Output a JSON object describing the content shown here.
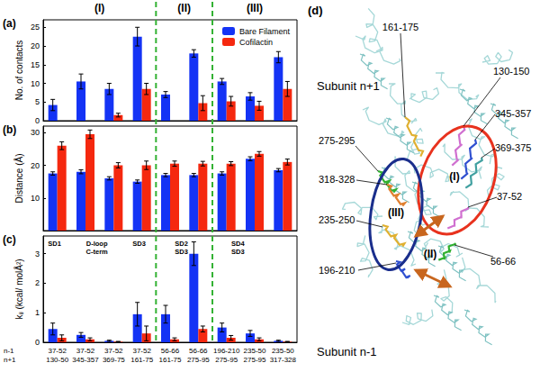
{
  "chart_data": [
    {
      "type": "bar",
      "panel_label": "(a)",
      "y_label": "No. of contacts",
      "categories": [
        "37-52\n130-50",
        "37-52\n345-357",
        "37-52\n369-75",
        "37-52\n161-75",
        "56-66\n161-75",
        "56-66\n275-95",
        "196-210\n275-95",
        "235-50\n275-95",
        "235-50\n317-328"
      ],
      "series": [
        {
          "name": "Bare Filament",
          "color": "#1433f5",
          "values": [
            4.2,
            10.5,
            8.5,
            22.5,
            7,
            18,
            10.5,
            6.5,
            17
          ],
          "errors": [
            1.5,
            2,
            1.5,
            2.5,
            0.8,
            1,
            0.8,
            1,
            1.5
          ]
        },
        {
          "name": "Cofilactin",
          "color": "#f5280f",
          "values": [
            0,
            0,
            1.5,
            8.5,
            0,
            4.7,
            5.2,
            4.0,
            8.5
          ],
          "errors": [
            0,
            0,
            0.5,
            1.5,
            0,
            2,
            1.3,
            1.2,
            2
          ]
        }
      ],
      "ylim": [
        0,
        27
      ],
      "yticks": [
        0,
        5,
        10,
        15,
        20,
        25
      ],
      "grid": false,
      "legend": "upper right",
      "tick_labels": "y",
      "groups": [
        {
          "label": "(I)",
          "categories": [
            0,
            3
          ]
        },
        {
          "label": "(II)",
          "categories": [
            4,
            5
          ]
        },
        {
          "label": "(III)",
          "categories": [
            6,
            8
          ]
        }
      ]
    },
    {
      "type": "bar",
      "panel_label": "(b)",
      "y_label": "Distance (Å)",
      "categories": [
        "37-52\n130-50",
        "37-52\n345-357",
        "37-52\n369-75",
        "37-52\n161-75",
        "56-66\n161-75",
        "56-66\n275-95",
        "196-210\n275-95",
        "235-50\n275-95",
        "235-50\n317-328"
      ],
      "series": [
        {
          "name": "Bare Filament",
          "color": "#1433f5",
          "values": [
            17.5,
            18,
            16,
            15,
            17,
            17,
            17.5,
            22,
            18.5
          ],
          "errors": [
            0.5,
            0.6,
            0.5,
            0.5,
            0.5,
            0.5,
            0.5,
            0.6,
            0.5
          ]
        },
        {
          "name": "Cofilactin",
          "color": "#f5280f",
          "values": [
            26,
            29.5,
            20,
            20,
            20.5,
            20.5,
            20.5,
            23.5,
            21
          ],
          "errors": [
            1.2,
            1.3,
            0.8,
            1.3,
            0.8,
            0.7,
            0.6,
            0.7,
            0.9
          ]
        }
      ],
      "ylim": [
        0,
        32
      ],
      "yticks": [
        10,
        20,
        30
      ],
      "grid": false,
      "tick_labels": "y"
    },
    {
      "type": "bar",
      "panel_label": "(c)",
      "y_label": "kᵢⱼ (kcal/ molÅ²)",
      "categories": [
        "37-52\n130-50",
        "37-52\n345-357",
        "37-52\n369-75",
        "37-52\n161-75",
        "56-66\n161-75",
        "56-66\n275-95",
        "196-210\n275-95",
        "235-50\n275-95",
        "235-50\n317-328"
      ],
      "series": [
        {
          "name": "Bare Filament",
          "color": "#1433f5",
          "values": [
            0.45,
            0.25,
            0.05,
            0.95,
            0.95,
            3.0,
            0.5,
            0.3,
            0.05
          ],
          "errors": [
            0.2,
            0.08,
            0.02,
            0.4,
            0.3,
            0.4,
            0.15,
            0.1,
            0.02
          ]
        },
        {
          "name": "Cofilactin",
          "color": "#f5280f",
          "values": [
            0.15,
            0.1,
            0.02,
            0.3,
            0.1,
            0.45,
            0.15,
            0.1,
            0.02
          ],
          "errors": [
            0.1,
            0.05,
            0.01,
            0.25,
            0.05,
            0.1,
            0.08,
            0.05,
            0.01
          ]
        }
      ],
      "ylim": [
        0,
        3.6
      ],
      "yticks": [
        0,
        1,
        2,
        3
      ],
      "grid": false,
      "annotations": [
        {
          "text": "SD1",
          "categories": [
            0,
            0
          ]
        },
        {
          "text": "D-loop\nC-term",
          "categories": [
            1,
            2
          ]
        },
        {
          "text": "SD3",
          "categories": [
            3,
            3
          ]
        },
        {
          "text": "SD2\nSD3",
          "categories": [
            4,
            5
          ]
        },
        {
          "text": "SD4\nSD3",
          "categories": [
            6,
            7
          ]
        }
      ]
    }
  ],
  "row_labels": [
    "n-1",
    "n+1"
  ],
  "diagram": {
    "panel_label": "(d)",
    "subunits": [
      "Subunit n+1",
      "Subunit n-1"
    ],
    "regions": [
      "161-175",
      "130-150",
      "275-295",
      "345-357",
      "318-328",
      "369-375",
      "235-250",
      "37-52",
      "56-66",
      "196-210"
    ],
    "interfaces": [
      "(I)",
      "(II)",
      "(III)"
    ]
  }
}
